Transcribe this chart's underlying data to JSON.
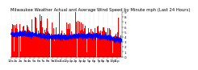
{
  "title": "Milwaukee Weather Actual and Average Wind Speed by Minute mph (Last 24 Hours)",
  "title_fontsize": 3.8,
  "n_points": 1440,
  "y_min": 0,
  "y_max": 9,
  "yticks": [
    0,
    1,
    2,
    3,
    4,
    5,
    6,
    7,
    8,
    9
  ],
  "bar_color": "#FF0000",
  "avg_color": "#0000FF",
  "bg_color": "#FFFFFF",
  "plot_bg_color": "#FFFFFF",
  "grid_color": "#C0C0C0",
  "tick_fontsize": 3.0,
  "avg_linewidth": 0.5,
  "avg_markersize": 0.4,
  "bar_width": 1.0,
  "seed": 42
}
